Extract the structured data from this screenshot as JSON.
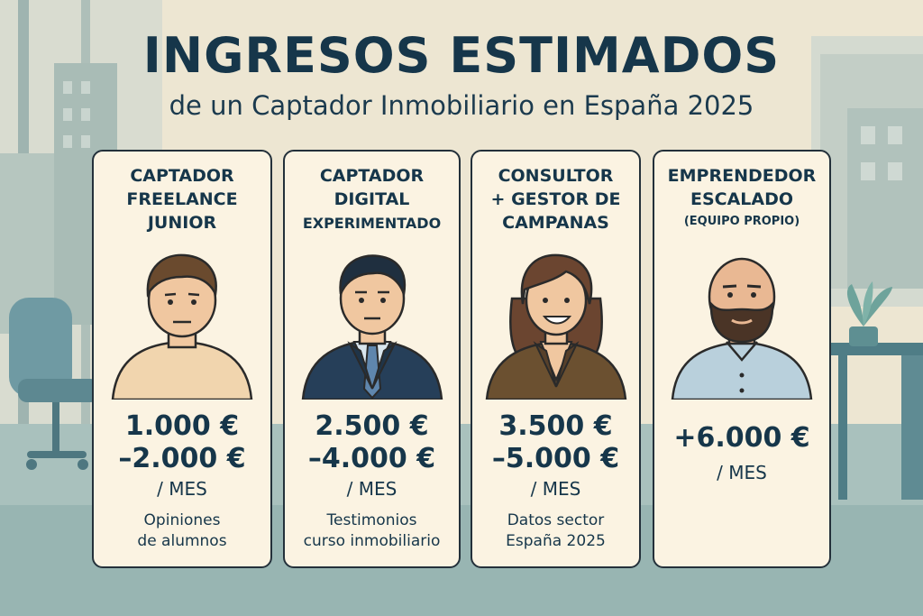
{
  "header": {
    "title": "INGRESOS ESTIMADOS",
    "subtitle": "de un Captador Inmobiliario en España 2025"
  },
  "cards": [
    {
      "title_lines": [
        "CAPTADOR",
        "FREELANCE",
        "JUNIOR"
      ],
      "title_sub": "",
      "price_lines": [
        "1.000 €",
        "–2.000 €"
      ],
      "period": "/ MES",
      "note_lines": [
        "Opiniones",
        "de alumnos"
      ],
      "avatar": "young-man-beige-shirt-icon"
    },
    {
      "title_lines": [
        "CAPTADOR",
        "DIGITAL",
        "EXPERIMENTADO"
      ],
      "title_sub": "",
      "price_lines": [
        "2.500 €",
        "–4.000 €"
      ],
      "period": "/ MES",
      "note_lines": [
        "Testimonios",
        "curso inmobiliario"
      ],
      "avatar": "man-suit-tie-icon"
    },
    {
      "title_lines": [
        "CONSULTOR",
        "+ GESTOR DE",
        "CAMPANAS"
      ],
      "title_sub": "",
      "price_lines": [
        "3.500 €",
        "–5.000 €"
      ],
      "period": "/ MES",
      "note_lines": [
        "Datos sector",
        "España 2025"
      ],
      "avatar": "woman-brown-blazer-icon"
    },
    {
      "title_lines": [
        "EMPRENDEDOR",
        "ESCALADO"
      ],
      "title_sub": "(EQUIPO PROPIO)",
      "price_lines": [
        "+6.000 €"
      ],
      "period": "/ MES",
      "note_lines": [],
      "avatar": "bald-bearded-man-icon"
    }
  ],
  "colors": {
    "background": "#efe7d3",
    "text": "#16364a",
    "card": "#fbf3e2",
    "border": "#23303a"
  }
}
